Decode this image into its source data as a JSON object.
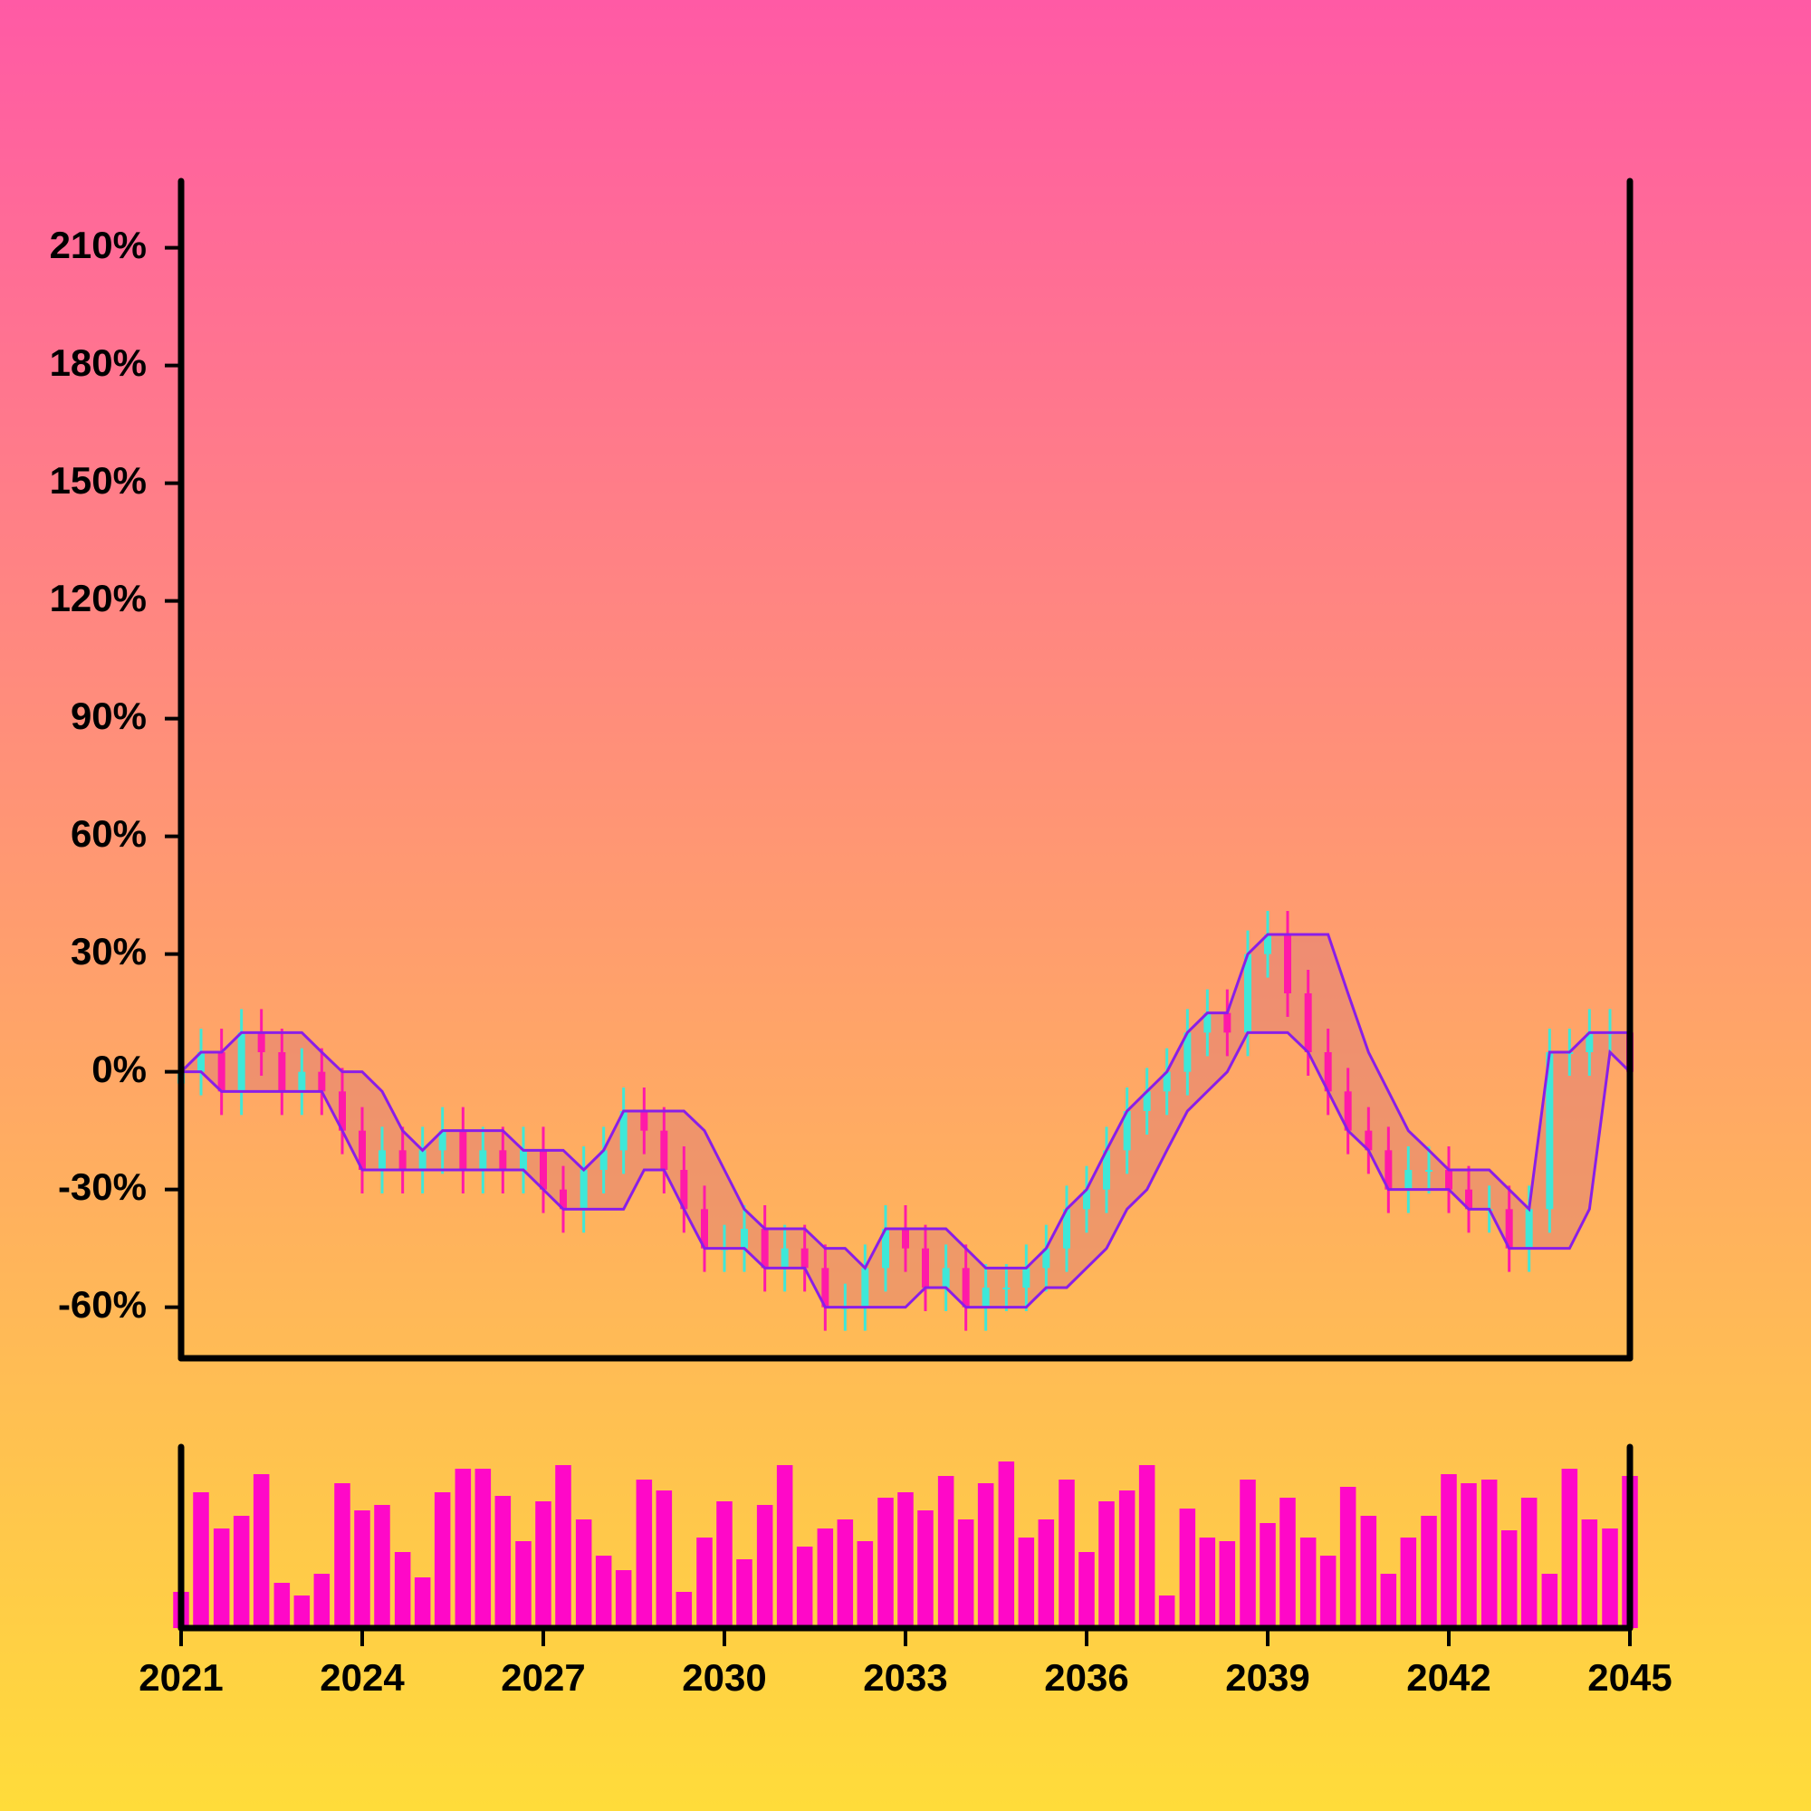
{
  "chart_data": {
    "type": "candlestick",
    "x": [
      2021.0,
      2021.33,
      2021.67,
      2022.0,
      2022.33,
      2022.67,
      2023.0,
      2023.33,
      2023.67,
      2024.0,
      2024.33,
      2024.67,
      2025.0,
      2025.33,
      2025.67,
      2026.0,
      2026.33,
      2026.67,
      2027.0,
      2027.33,
      2027.67,
      2028.0,
      2028.33,
      2028.67,
      2029.0,
      2029.33,
      2029.67,
      2030.0,
      2030.33,
      2030.67,
      2031.0,
      2031.33,
      2031.67,
      2032.0,
      2032.33,
      2032.67,
      2033.0,
      2033.33,
      2033.67,
      2034.0,
      2034.33,
      2034.67,
      2035.0,
      2035.33,
      2035.67,
      2036.0,
      2036.33,
      2036.67,
      2037.0,
      2037.33,
      2037.67,
      2038.0,
      2038.33,
      2038.67,
      2039.0,
      2039.33,
      2039.67,
      2040.0,
      2040.33,
      2040.67,
      2041.0,
      2041.33,
      2041.67,
      2042.0,
      2042.33,
      2042.67,
      2043.0,
      2043.33,
      2043.67,
      2044.0,
      2044.33,
      2044.67,
      2045.0
    ],
    "open": [
      -3,
      0,
      5,
      -5,
      10,
      5,
      -5,
      0,
      -5,
      -15,
      -25,
      -20,
      -25,
      -20,
      -15,
      -25,
      -20,
      -25,
      -20,
      -30,
      -35,
      -25,
      -20,
      -10,
      -15,
      -25,
      -35,
      -45,
      -45,
      -40,
      -50,
      -45,
      -50,
      -60,
      -60,
      -50,
      -40,
      -45,
      -55,
      -50,
      -60,
      -55,
      -55,
      -50,
      -45,
      -35,
      -30,
      -20,
      -10,
      -5,
      0,
      10,
      15,
      10,
      30,
      35,
      20,
      5,
      -5,
      -15,
      -20,
      -30,
      -25,
      -25,
      -30,
      -35,
      -35,
      -45,
      -35,
      5,
      5,
      10,
      10
    ],
    "high": [
      6,
      11,
      11,
      16,
      16,
      11,
      6,
      6,
      1,
      -9,
      -14,
      -14,
      -14,
      -9,
      -9,
      -14,
      -14,
      -14,
      -14,
      -24,
      -19,
      -14,
      -4,
      -4,
      -9,
      -19,
      -29,
      -39,
      -34,
      -34,
      -39,
      -39,
      -44,
      -54,
      -44,
      -34,
      -34,
      -39,
      -44,
      -44,
      -49,
      -49,
      -44,
      -39,
      -29,
      -24,
      -14,
      -4,
      1,
      6,
      16,
      21,
      21,
      36,
      41,
      41,
      26,
      11,
      1,
      -9,
      -14,
      -19,
      -19,
      -19,
      -24,
      -29,
      -29,
      -29,
      11,
      11,
      16,
      16,
      16
    ],
    "low": [
      -9,
      -6,
      -11,
      -11,
      -1,
      -11,
      -11,
      -11,
      -21,
      -31,
      -31,
      -31,
      -31,
      -26,
      -31,
      -31,
      -31,
      -31,
      -36,
      -41,
      -41,
      -31,
      -26,
      -21,
      -31,
      -41,
      -51,
      -51,
      -51,
      -56,
      -56,
      -56,
      -66,
      -66,
      -66,
      -56,
      -51,
      -61,
      -61,
      -66,
      -66,
      -61,
      -61,
      -56,
      -51,
      -41,
      -36,
      -26,
      -16,
      -11,
      -6,
      4,
      4,
      4,
      24,
      14,
      -1,
      -11,
      -21,
      -26,
      -36,
      -36,
      -31,
      -36,
      -41,
      -41,
      -51,
      -51,
      -41,
      -1,
      -1,
      4,
      -6
    ],
    "close": [
      0,
      5,
      -5,
      10,
      5,
      -5,
      0,
      -5,
      -15,
      -25,
      -20,
      -25,
      -20,
      -15,
      -25,
      -20,
      -25,
      -20,
      -30,
      -35,
      -25,
      -20,
      -10,
      -15,
      -25,
      -35,
      -45,
      -45,
      -40,
      -50,
      -45,
      -50,
      -60,
      -60,
      -50,
      -40,
      -45,
      -55,
      -50,
      -60,
      -55,
      -55,
      -50,
      -45,
      -35,
      -30,
      -20,
      -10,
      -5,
      0,
      10,
      15,
      10,
      30,
      35,
      20,
      5,
      -5,
      -15,
      -20,
      -30,
      -25,
      -25,
      -30,
      -35,
      -35,
      -45,
      -35,
      5,
      5,
      10,
      10,
      0
    ],
    "up_color": "#3ee8d8",
    "down_color": "#ff1aa8",
    "channel": {
      "upper": [
        0,
        5,
        5,
        10,
        10,
        10,
        10,
        5,
        0,
        0,
        -5,
        -15,
        -20,
        -15,
        -15,
        -15,
        -15,
        -20,
        -20,
        -20,
        -25,
        -20,
        -10,
        -10,
        -10,
        -10,
        -15,
        -25,
        -35,
        -40,
        -40,
        -40,
        -45,
        -45,
        -50,
        -40,
        -40,
        -40,
        -40,
        -45,
        -50,
        -50,
        -50,
        -45,
        -35,
        -30,
        -20,
        -10,
        -5,
        0,
        10,
        15,
        15,
        30,
        35,
        35,
        35,
        35,
        20,
        5,
        -5,
        -15,
        -20,
        -25,
        -25,
        -25,
        -30,
        -35,
        5,
        5,
        10,
        10,
        10
      ],
      "lower": [
        0,
        0,
        -5,
        -5,
        -5,
        -5,
        -5,
        -5,
        -15,
        -25,
        -25,
        -25,
        -25,
        -25,
        -25,
        -25,
        -25,
        -25,
        -30,
        -35,
        -35,
        -35,
        -35,
        -25,
        -25,
        -35,
        -45,
        -45,
        -45,
        -50,
        -50,
        -50,
        -60,
        -60,
        -60,
        -60,
        -60,
        -55,
        -55,
        -60,
        -60,
        -60,
        -60,
        -55,
        -55,
        -50,
        -45,
        -35,
        -30,
        -20,
        -10,
        -5,
        0,
        10,
        10,
        10,
        5,
        -5,
        -15,
        -20,
        -30,
        -30,
        -30,
        -30,
        -35,
        -35,
        -45,
        -45,
        -45,
        -45,
        -35,
        5,
        0
      ],
      "color": "#8a1ee8",
      "fill": "rgba(220,120,120,0.45)"
    },
    "volume": {
      "values": [
        20,
        75,
        55,
        62,
        85,
        25,
        18,
        30,
        80,
        65,
        68,
        42,
        28,
        75,
        88,
        88,
        73,
        48,
        70,
        90,
        60,
        40,
        32,
        82,
        76,
        20,
        50,
        70,
        38,
        68,
        90,
        45,
        55,
        60,
        48,
        72,
        75,
        65,
        84,
        60,
        80,
        92,
        50,
        60,
        82,
        42,
        70,
        76,
        90,
        18,
        66,
        50,
        48,
        82,
        58,
        72,
        50,
        40,
        78,
        62,
        30,
        50,
        62,
        85,
        80,
        82,
        54,
        72,
        30,
        88,
        60,
        55,
        84
      ],
      "color": "#ff08c8",
      "ylim": [
        0,
        100
      ]
    },
    "xlim": [
      2021,
      2045
    ],
    "xticks": [
      2021,
      2024,
      2027,
      2030,
      2033,
      2036,
      2039,
      2042,
      2045
    ],
    "ylim": [
      -73,
      227
    ],
    "yticks": [
      {
        "value": -60,
        "label": "-60%"
      },
      {
        "value": -30,
        "label": "-30%"
      },
      {
        "value": 0,
        "label": "0%"
      },
      {
        "value": 30,
        "label": "30%"
      },
      {
        "value": 60,
        "label": "60%"
      },
      {
        "value": 90,
        "label": "90%"
      },
      {
        "value": 120,
        "label": "120%"
      },
      {
        "value": 150,
        "label": "150%"
      },
      {
        "value": 180,
        "label": "180%"
      },
      {
        "value": 210,
        "label": "210%"
      }
    ]
  }
}
